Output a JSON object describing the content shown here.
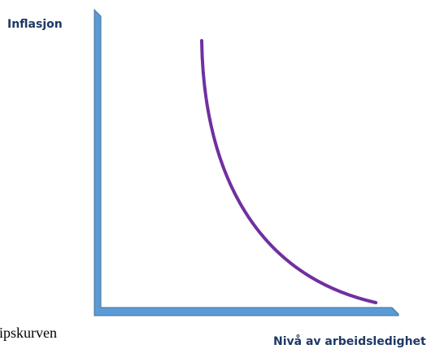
{
  "diagram": {
    "y_axis_label": "Inflasjon",
    "x_axis_label": "Nivå av arbeidsledighet",
    "caption_fragment": "ipskurven"
  }
}
